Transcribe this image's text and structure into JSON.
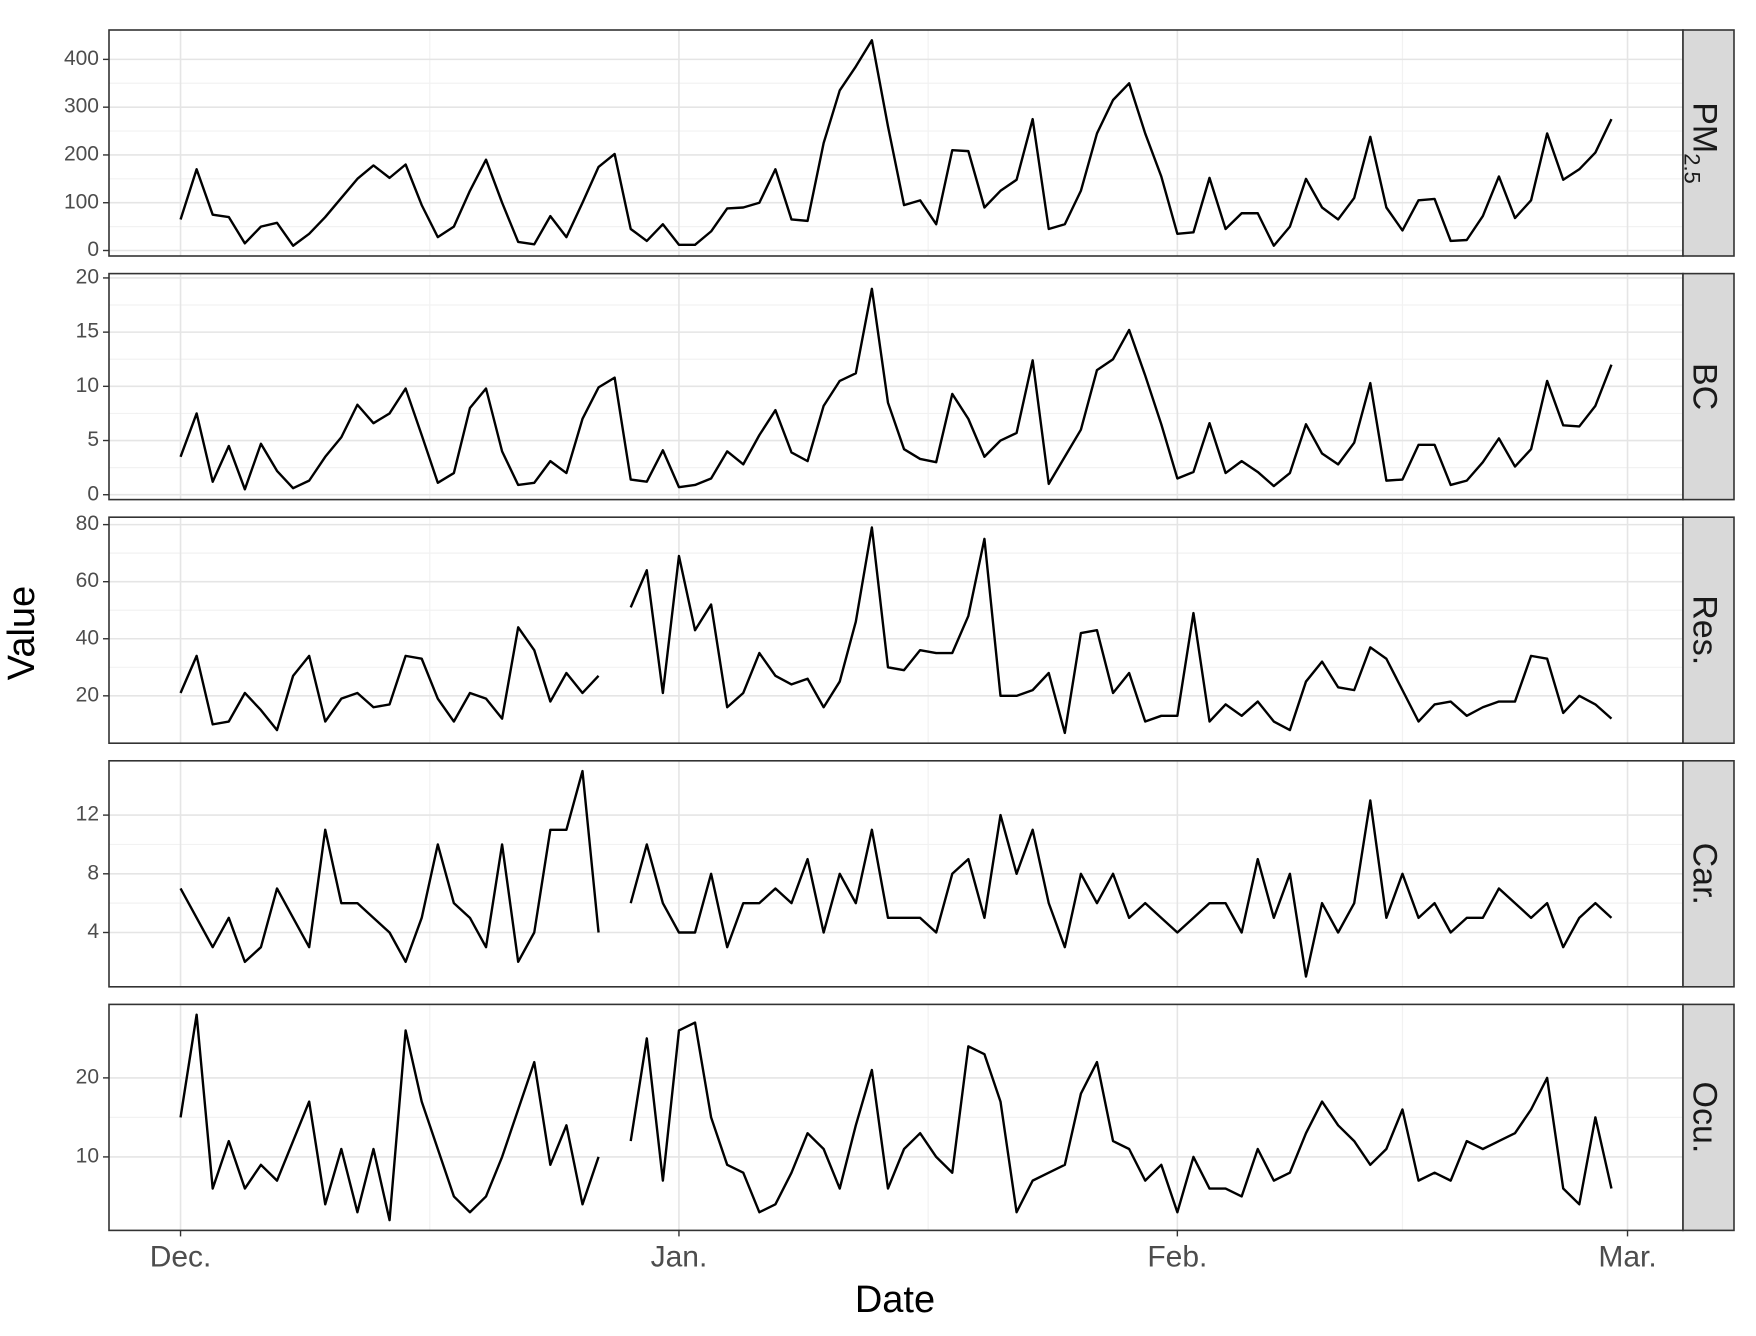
{
  "chart_data": {
    "type": "line",
    "xlabel": "Date",
    "ylabel": "Value",
    "x": [
      0,
      1,
      2,
      3,
      4,
      5,
      6,
      7,
      8,
      9,
      10,
      11,
      12,
      13,
      14,
      15,
      16,
      17,
      18,
      19,
      20,
      21,
      22,
      23,
      24,
      25,
      26,
      27,
      28,
      29,
      30,
      31,
      32,
      33,
      34,
      35,
      36,
      37,
      38,
      39,
      40,
      41,
      42,
      43,
      44,
      45,
      46,
      47,
      48,
      49,
      50,
      51,
      52,
      53,
      54,
      55,
      56,
      57,
      58,
      59,
      60,
      61,
      62,
      63,
      64,
      65,
      66,
      67,
      68,
      69,
      70,
      71,
      72,
      73,
      74,
      75,
      76,
      77,
      78,
      79,
      80,
      81,
      82,
      83,
      84,
      85,
      86,
      87,
      88,
      89
    ],
    "xlim": [
      -4.45,
      93.45
    ],
    "xticks": [
      {
        "value": 0,
        "label": "Dec."
      },
      {
        "value": 31,
        "label": "Jan."
      },
      {
        "value": 62,
        "label": "Feb."
      },
      {
        "value": 90,
        "label": "Mar."
      }
    ],
    "grid": true,
    "color": "#000000",
    "series": [
      {
        "name": "PM",
        "name_subscript": "2.5",
        "ylim": [
          -11.5,
          461.5
        ],
        "yticks": [
          0,
          100,
          200,
          300,
          400
        ],
        "values": [
          65,
          170,
          75,
          70,
          15,
          50,
          58,
          10,
          35,
          70,
          110,
          150,
          178,
          152,
          180,
          95,
          28,
          50,
          125,
          190,
          100,
          18,
          13,
          72,
          28,
          100,
          175,
          202,
          45,
          20,
          55,
          12,
          12,
          40,
          88,
          90,
          100,
          170,
          65,
          62,
          225,
          335,
          385,
          440,
          260,
          95,
          105,
          55,
          210,
          208,
          90,
          125,
          148,
          275,
          45,
          55,
          125,
          245,
          315,
          350,
          245,
          155,
          35,
          38,
          152,
          45,
          78,
          78,
          10,
          50,
          150,
          90,
          65,
          110,
          238,
          90,
          42,
          105,
          108,
          20,
          22,
          72,
          155,
          68,
          105,
          245,
          148,
          170,
          205,
          275
        ]
      },
      {
        "name": "BC",
        "ylim": [
          -0.45,
          20.4
        ],
        "yticks": [
          0,
          5,
          10,
          15,
          20
        ],
        "values": [
          3.5,
          7.5,
          1.2,
          4.5,
          0.5,
          4.7,
          2.2,
          0.6,
          1.3,
          3.5,
          5.3,
          8.3,
          6.6,
          7.5,
          9.8,
          5.5,
          1.1,
          2.0,
          8.0,
          9.8,
          4.0,
          0.9,
          1.1,
          3.1,
          2.0,
          7.0,
          9.9,
          10.8,
          1.4,
          1.2,
          4.1,
          0.7,
          0.9,
          1.5,
          4.0,
          2.8,
          5.5,
          7.8,
          3.9,
          3.1,
          8.2,
          10.5,
          11.2,
          19.0,
          8.5,
          4.2,
          3.3,
          3.0,
          9.3,
          7.0,
          3.5,
          5.0,
          5.7,
          12.4,
          1.0,
          3.5,
          6.0,
          11.5,
          12.5,
          15.2,
          11.0,
          6.5,
          1.5,
          2.1,
          6.6,
          2.0,
          3.1,
          2.1,
          0.8,
          2.0,
          6.5,
          3.8,
          2.8,
          4.8,
          10.3,
          1.3,
          1.4,
          4.6,
          4.6,
          0.9,
          1.3,
          3.0,
          5.2,
          2.6,
          4.2,
          10.5,
          6.4,
          6.3,
          8.2,
          12.0
        ]
      },
      {
        "name": "Res.",
        "ylim": [
          3.4,
          82.6
        ],
        "yticks": [
          20,
          40,
          60,
          80
        ],
        "values": [
          21,
          34,
          10,
          11,
          21,
          15,
          8,
          27,
          34,
          11,
          19,
          21,
          16,
          17,
          34,
          33,
          19,
          11,
          21,
          19,
          12,
          44,
          36,
          18,
          28,
          21,
          27,
          null,
          51,
          64,
          21,
          69,
          43,
          52,
          16,
          21,
          35,
          27,
          24,
          26,
          16,
          25,
          46,
          79,
          30,
          29,
          36,
          35,
          35,
          48,
          75,
          20,
          20,
          22,
          28,
          7,
          42,
          43,
          21,
          28,
          11,
          13,
          13,
          49,
          11,
          17,
          13,
          18,
          11,
          8,
          25,
          32,
          23,
          22,
          37,
          33,
          22,
          11,
          17,
          18,
          13,
          16,
          18,
          18,
          34,
          33,
          14,
          20,
          17,
          12
        ]
      },
      {
        "name": "Car.",
        "ylim": [
          0.3,
          15.7
        ],
        "yticks": [
          4,
          8,
          12
        ],
        "values": [
          7,
          5,
          3,
          5,
          2,
          3,
          7,
          5,
          3,
          11,
          6,
          6,
          5,
          4,
          2,
          5,
          10,
          6,
          5,
          3,
          10,
          2,
          4,
          11,
          11,
          15,
          4,
          null,
          6,
          10,
          6,
          4,
          4,
          8,
          3,
          6,
          6,
          7,
          6,
          9,
          4,
          8,
          6,
          11,
          5,
          5,
          5,
          4,
          8,
          9,
          5,
          12,
          8,
          11,
          6,
          3,
          8,
          6,
          8,
          5,
          6,
          5,
          4,
          5,
          6,
          6,
          4,
          9,
          5,
          8,
          1,
          6,
          4,
          6,
          13,
          5,
          8,
          5,
          6,
          4,
          5,
          5,
          7,
          6,
          5,
          6,
          3,
          5,
          6,
          5
        ]
      },
      {
        "name": "Ocu.",
        "ylim": [
          0.7,
          29.3
        ],
        "yticks": [
          10,
          20
        ],
        "values": [
          15,
          28,
          6,
          12,
          6,
          9,
          7,
          12,
          17,
          4,
          11,
          3,
          11,
          2,
          26,
          17,
          11,
          5,
          3,
          5,
          10,
          16,
          22,
          9,
          14,
          4,
          10,
          null,
          12,
          25,
          7,
          26,
          27,
          15,
          9,
          8,
          3,
          4,
          8,
          13,
          11,
          6,
          14,
          21,
          6,
          11,
          13,
          10,
          8,
          24,
          23,
          17,
          3,
          7,
          8,
          9,
          18,
          22,
          12,
          11,
          7,
          9,
          3,
          10,
          6,
          6,
          5,
          11,
          7,
          8,
          13,
          17,
          14,
          12,
          9,
          11,
          16,
          7,
          8,
          7,
          12,
          11,
          12,
          13,
          16,
          20,
          6,
          4,
          15,
          6
        ]
      }
    ]
  }
}
